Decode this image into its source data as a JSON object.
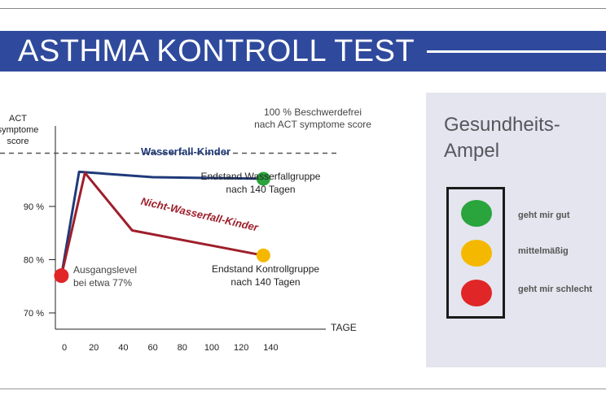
{
  "header": {
    "title": "ASTHMA KONTROLL TEST"
  },
  "colors": {
    "banner": "#2f4a9c",
    "wasserfall": "#1f3a7a",
    "nicht_wasserfall": "#9e1f2b",
    "green": "#2aa43c",
    "yellow": "#f5b800",
    "red": "#e02626"
  },
  "chart_data": {
    "type": "line",
    "xlabel": "TAGE",
    "ylabel": "ACT symptome score",
    "x_ticks": [
      "0",
      "20",
      "40",
      "60",
      "80",
      "100",
      "120",
      "140"
    ],
    "y_ticks": [
      "70 %",
      "80 %",
      "90 %"
    ],
    "xlim": [
      -5,
      150
    ],
    "ylim": [
      67.5,
      103
    ],
    "reference_line": {
      "y": 100,
      "label": "100 % Beschwerdefrei nach ACT symptome score"
    },
    "series": [
      {
        "name": "Wasserfall-Kinder",
        "points": [
          [
            -2,
            77
          ],
          [
            10,
            96.5
          ],
          [
            60,
            95.5
          ],
          [
            135,
            95.2
          ]
        ],
        "end_label": "Endstand Wasserfallgruppe nach 140 Tagen"
      },
      {
        "name": "Nicht-Wasserfall-Kinder",
        "points": [
          [
            -2,
            77
          ],
          [
            14,
            96.3
          ],
          [
            46,
            85.5
          ],
          [
            135,
            80.8
          ]
        ],
        "end_label": "Endstand Kontrollgruppe nach 140 Tagen"
      }
    ],
    "start": {
      "x": -2,
      "y": 77,
      "label": "Ausgangslevel bei etwa 77%"
    }
  },
  "panel": {
    "title": "Gesundheits-Ampel",
    "legend": [
      {
        "color": "green",
        "label": "geht mir gut"
      },
      {
        "color": "yellow",
        "label": "mittelmäßig"
      },
      {
        "color": "red",
        "label": "geht mir schlecht"
      }
    ]
  }
}
